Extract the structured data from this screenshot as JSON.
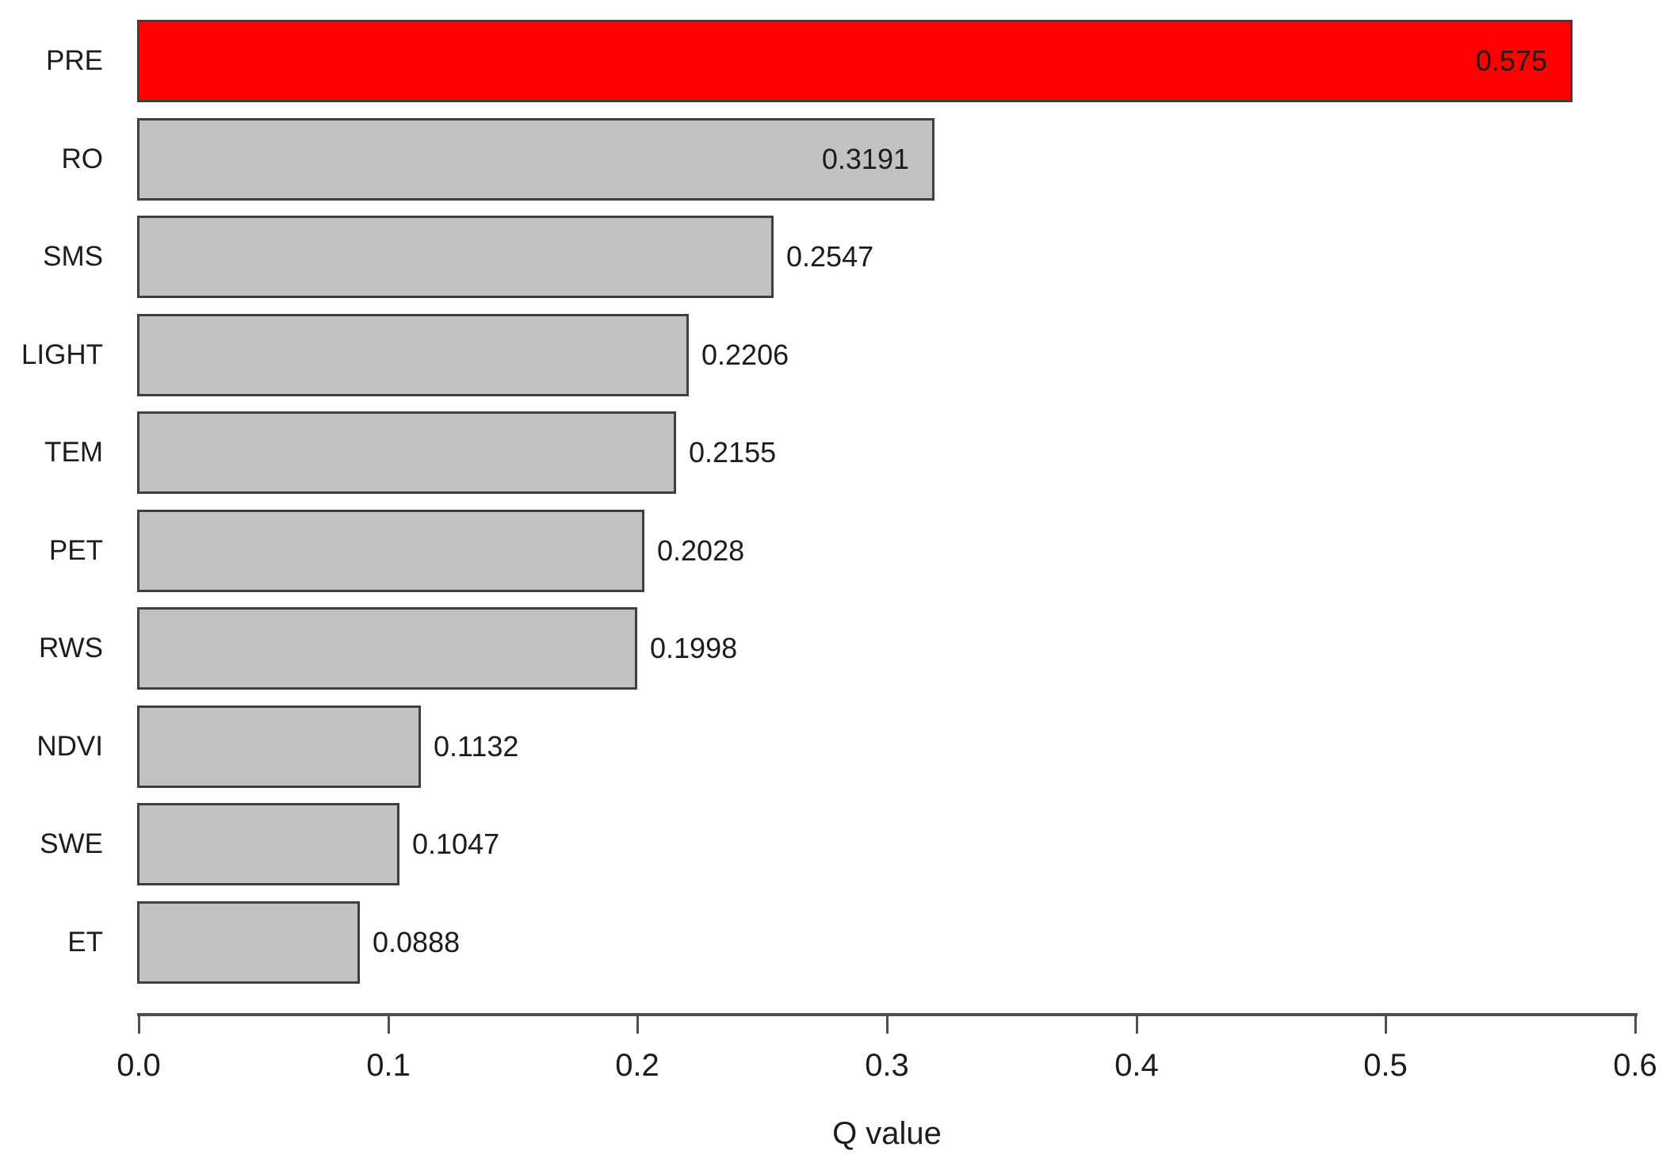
{
  "chart_data": {
    "type": "bar",
    "orientation": "horizontal",
    "title": "",
    "xlabel": "Q value",
    "categories": [
      "PRE",
      "RO",
      "SMS",
      "LIGHT",
      "TEM",
      "PET",
      "RWS",
      "NDVI",
      "SWE",
      "ET"
    ],
    "values": [
      0.575,
      0.3191,
      0.2547,
      0.2206,
      0.2155,
      0.2028,
      0.1998,
      0.1132,
      0.1047,
      0.0888
    ],
    "value_labels": [
      "0.575",
      "0.3191",
      "0.2547",
      "0.2206",
      "0.2155",
      "0.2028",
      "0.1998",
      "0.1132",
      "0.1047",
      "0.0888"
    ],
    "label_inside": [
      true,
      true,
      false,
      false,
      false,
      false,
      false,
      false,
      false,
      false
    ],
    "bar_colors": [
      "#fe0000",
      "#c2c2c2",
      "#c2c2c2",
      "#c2c2c2",
      "#c2c2c2",
      "#c2c2c2",
      "#c2c2c2",
      "#c2c2c2",
      "#c2c2c2",
      "#c2c2c2"
    ],
    "highlight_color": "#fe0000",
    "default_bar_fill": "#c2c2c2",
    "bar_border_color": "#3f3f3f",
    "axis_color": "#4e4e4e",
    "xlim": [
      0.0,
      0.6
    ],
    "x_ticks": [
      "0.0",
      "0.1",
      "0.2",
      "0.3",
      "0.4",
      "0.5",
      "0.6"
    ],
    "grid": false,
    "legend": null
  }
}
